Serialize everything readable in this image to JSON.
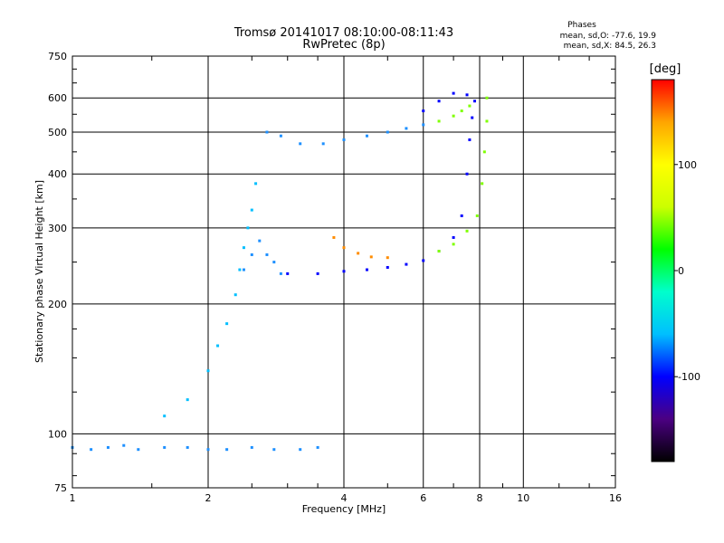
{
  "chart_data": {
    "type": "scatter",
    "title": "Tromsø 20141017 08:10:00-08:11:43",
    "subtitle": "RwPretec (8p)",
    "stats": {
      "heading": "Phases",
      "line_o": "mean, sd,O: -77.6, 19.9",
      "line_x": "mean, sd,X:  84.5, 26.3"
    },
    "xlabel": "Frequency [MHz]",
    "ylabel": "Stationary phase Virtual Height [km]",
    "x_scale": "log",
    "y_scale": "log",
    "xlim": [
      1,
      16
    ],
    "ylim": [
      75,
      750
    ],
    "x_ticks": [
      {
        "value": 1,
        "label": "1"
      },
      {
        "value": 2,
        "label": "2"
      },
      {
        "value": 4,
        "label": "4"
      },
      {
        "value": 6,
        "label": "6"
      },
      {
        "value": 8,
        "label": "8"
      },
      {
        "value": 10,
        "label": "10"
      },
      {
        "value": 16,
        "label": "16"
      }
    ],
    "y_ticks": [
      {
        "value": 75,
        "label": "75"
      },
      {
        "value": 100,
        "label": "100"
      },
      {
        "value": 200,
        "label": "200"
      },
      {
        "value": 300,
        "label": "300"
      },
      {
        "value": 400,
        "label": "400"
      },
      {
        "value": 500,
        "label": "500"
      },
      {
        "value": 600,
        "label": "600"
      },
      {
        "value": 750,
        "label": "750"
      }
    ],
    "grid": true,
    "colorbar": {
      "label": "[deg]",
      "range": [
        -180,
        180
      ],
      "ticks": [
        {
          "value": 100,
          "label": "100"
        },
        {
          "value": 0,
          "label": "0"
        },
        {
          "value": -100,
          "label": "-100"
        }
      ],
      "stops": [
        "#000000",
        "#4b0082",
        "#0000ff",
        "#00bfff",
        "#00ffcc",
        "#00ff00",
        "#ccff00",
        "#ffff00",
        "#ffa500",
        "#ff0000"
      ]
    },
    "traces": [
      {
        "color": "#1e90ff",
        "points": [
          [
            1.0,
            93
          ],
          [
            1.1,
            92
          ],
          [
            1.2,
            93
          ],
          [
            1.3,
            94
          ],
          [
            1.4,
            92
          ],
          [
            1.6,
            93
          ],
          [
            1.8,
            93
          ],
          [
            2.0,
            92
          ],
          [
            2.2,
            92
          ],
          [
            2.5,
            93
          ],
          [
            2.8,
            92
          ],
          [
            3.2,
            92
          ],
          [
            3.5,
            93
          ]
        ]
      },
      {
        "color": "#00bfff",
        "points": [
          [
            1.6,
            110
          ],
          [
            1.8,
            120
          ],
          [
            2.0,
            140
          ],
          [
            2.1,
            160
          ],
          [
            2.2,
            180
          ],
          [
            2.3,
            210
          ],
          [
            2.35,
            240
          ],
          [
            2.4,
            270
          ],
          [
            2.45,
            300
          ],
          [
            2.5,
            330
          ],
          [
            2.55,
            380
          ]
        ]
      },
      {
        "color": "#1e90ff",
        "points": [
          [
            2.4,
            240
          ],
          [
            2.5,
            260
          ],
          [
            2.6,
            280
          ],
          [
            2.7,
            260
          ],
          [
            2.8,
            250
          ],
          [
            2.9,
            235
          ]
        ]
      },
      {
        "color": "#1e90ff",
        "points": [
          [
            2.7,
            500
          ],
          [
            2.9,
            490
          ],
          [
            3.2,
            470
          ],
          [
            3.6,
            470
          ],
          [
            4.0,
            480
          ],
          [
            4.5,
            490
          ],
          [
            5.0,
            500
          ],
          [
            5.5,
            510
          ],
          [
            6.0,
            520
          ]
        ]
      },
      {
        "color": "#0000ff",
        "points": [
          [
            3.0,
            235
          ],
          [
            3.5,
            235
          ],
          [
            4.0,
            238
          ],
          [
            4.5,
            240
          ],
          [
            5.0,
            243
          ],
          [
            5.5,
            247
          ],
          [
            6.0,
            252
          ],
          [
            6.5,
            265
          ],
          [
            7.0,
            285
          ],
          [
            7.3,
            320
          ],
          [
            7.5,
            400
          ],
          [
            7.6,
            480
          ],
          [
            7.7,
            540
          ],
          [
            7.8,
            590
          ]
        ]
      },
      {
        "color": "#ff8c00",
        "points": [
          [
            3.8,
            285
          ],
          [
            4.0,
            270
          ],
          [
            4.3,
            262
          ],
          [
            4.6,
            257
          ],
          [
            5.0,
            256
          ]
        ]
      },
      {
        "color": "#7fff00",
        "points": [
          [
            6.5,
            265
          ],
          [
            7.0,
            275
          ],
          [
            7.5,
            295
          ],
          [
            7.9,
            320
          ],
          [
            8.1,
            380
          ],
          [
            8.2,
            450
          ],
          [
            8.3,
            530
          ],
          [
            8.3,
            600
          ]
        ]
      },
      {
        "color": "#7fff00",
        "points": [
          [
            6.5,
            530
          ],
          [
            7.0,
            545
          ],
          [
            7.3,
            560
          ],
          [
            7.6,
            575
          ]
        ]
      },
      {
        "color": "#0000ff",
        "points": [
          [
            6.0,
            560
          ],
          [
            6.5,
            590
          ],
          [
            7.0,
            615
          ],
          [
            7.5,
            610
          ]
        ]
      }
    ]
  }
}
